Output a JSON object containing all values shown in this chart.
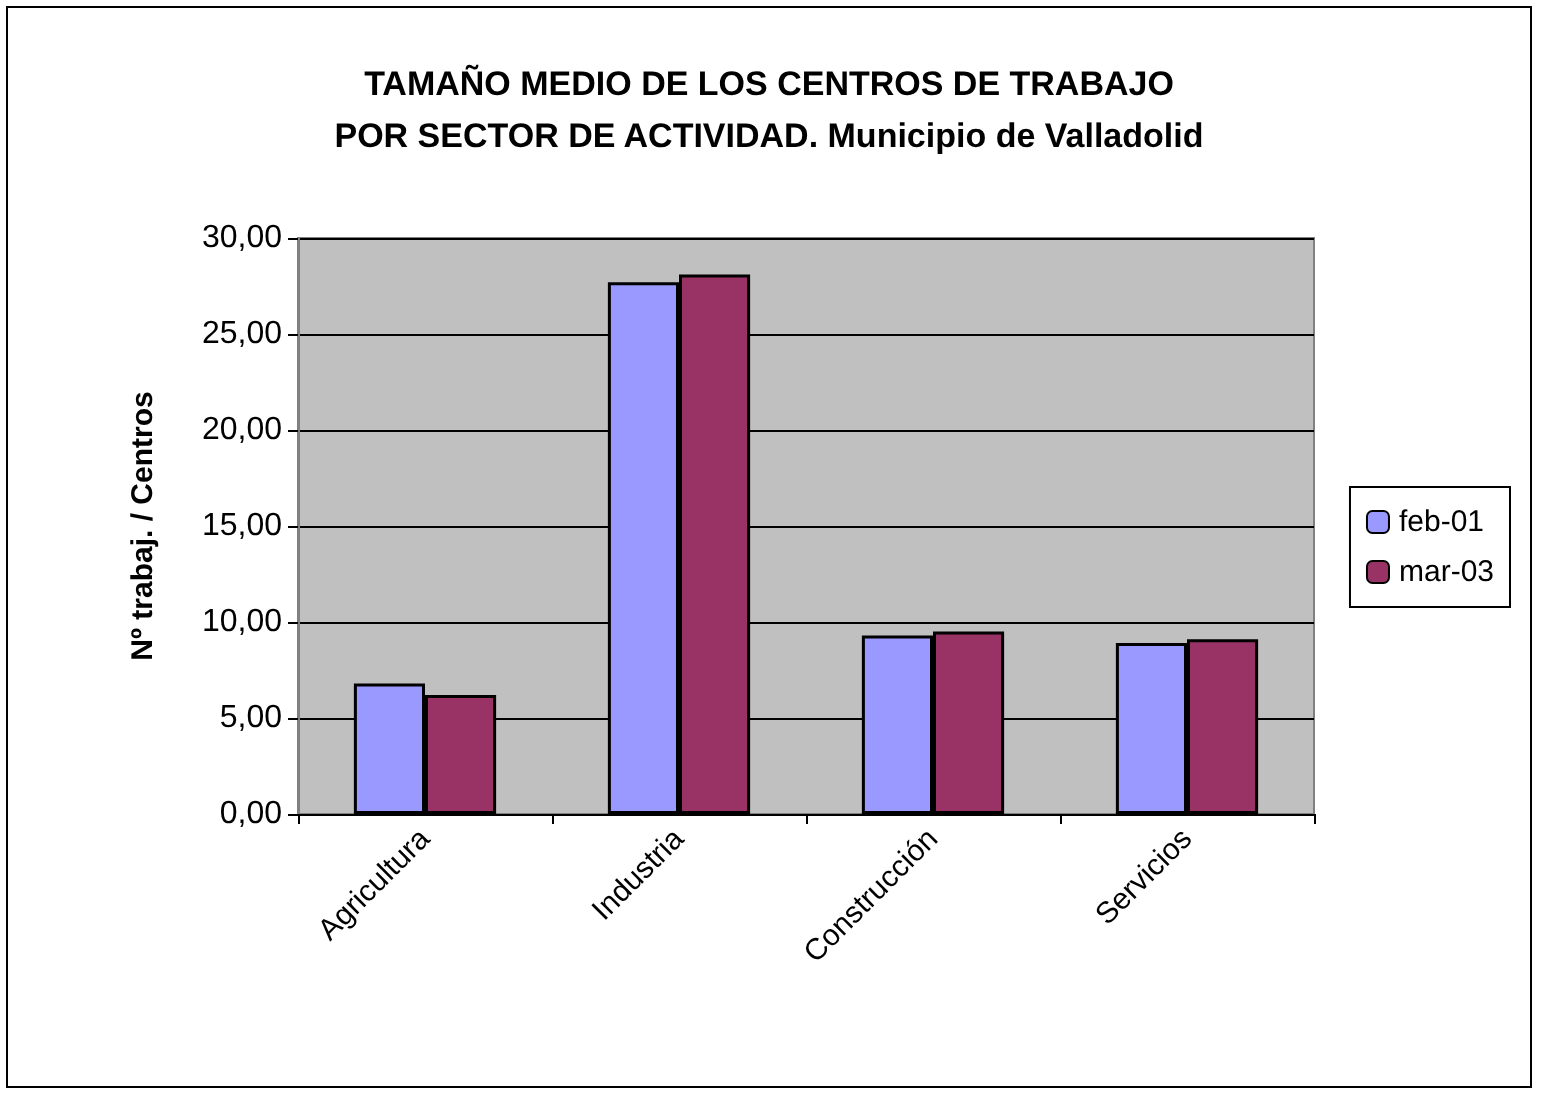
{
  "chart_data": {
    "type": "bar",
    "title": "TAMAÑO MEDIO DE LOS CENTROS DE TRABAJO\nPOR SECTOR DE ACTIVIDAD. Municipio de Valladolid",
    "ylabel": "Nº trabaj. / Centros",
    "categories": [
      "Agricultura",
      "Industria",
      "Construcción",
      "Servicios"
    ],
    "series": [
      {
        "name": "feb-01",
        "color": "#9999ff",
        "values": [
          6.8,
          27.7,
          9.3,
          8.9
        ]
      },
      {
        "name": "mar-03",
        "color": "#993366",
        "values": [
          6.2,
          28.1,
          9.5,
          9.1
        ]
      }
    ],
    "ylim": [
      0,
      30
    ],
    "yticks": [
      {
        "value": 0,
        "label": "0,00"
      },
      {
        "value": 5,
        "label": "5,00"
      },
      {
        "value": 10,
        "label": "10,00"
      },
      {
        "value": 15,
        "label": "15,00"
      },
      {
        "value": 20,
        "label": "20,00"
      },
      {
        "value": 25,
        "label": "25,00"
      },
      {
        "value": 30,
        "label": "30,00"
      }
    ],
    "grid": "y",
    "legend": "right"
  }
}
